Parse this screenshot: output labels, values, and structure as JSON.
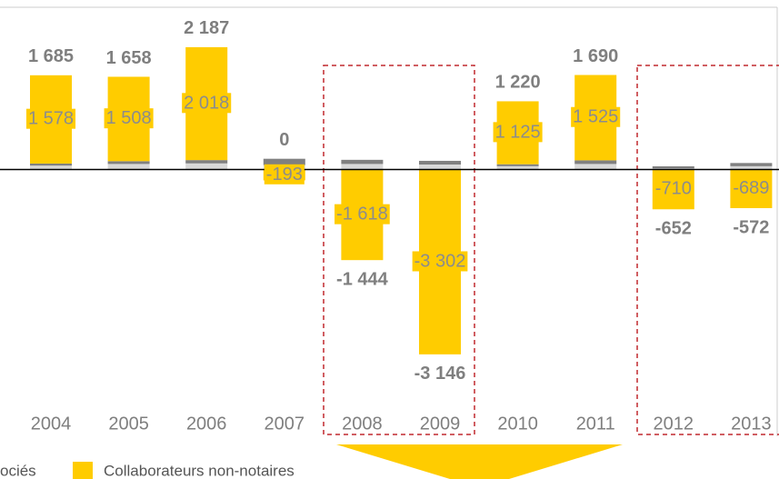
{
  "chart_data": {
    "type": "bar",
    "stacked": true,
    "categories": [
      "2004",
      "2005",
      "2006",
      "2007",
      "2008",
      "2009",
      "2010",
      "2011",
      "2012",
      "2013"
    ],
    "series": [
      {
        "color": "#d9d9d9",
        "values": [
          70,
          100,
          110,
          80,
          100,
          90,
          60,
          100,
          20,
          60
        ]
      },
      {
        "name": "ociés",
        "color": "#808080",
        "values": [
          37,
          50,
          59,
          113,
          74,
          66,
          35,
          65,
          38,
          57
        ]
      },
      {
        "name": "Collaborateurs non-notaires",
        "color": "#ffcc00",
        "values": [
          1578,
          1508,
          2018,
          -193,
          -1618,
          -3302,
          1125,
          1525,
          -710,
          -689
        ],
        "value_labels": [
          "1 578",
          "1 508",
          "2 018",
          "-193",
          "-1 618",
          "-3 302",
          "1 125",
          "1 525",
          "-710",
          "-689"
        ]
      }
    ],
    "totals": {
      "values": [
        1685,
        1658,
        2187,
        0,
        -1444,
        -3146,
        1220,
        1690,
        -652,
        -572
      ],
      "value_labels": [
        "1 685",
        "1 658",
        "2 187",
        "0",
        "-1 444",
        "-3 146",
        "1 220",
        "1 690",
        "-652",
        "-572"
      ]
    },
    "ylim": [
      -4100,
      2900
    ]
  }
}
